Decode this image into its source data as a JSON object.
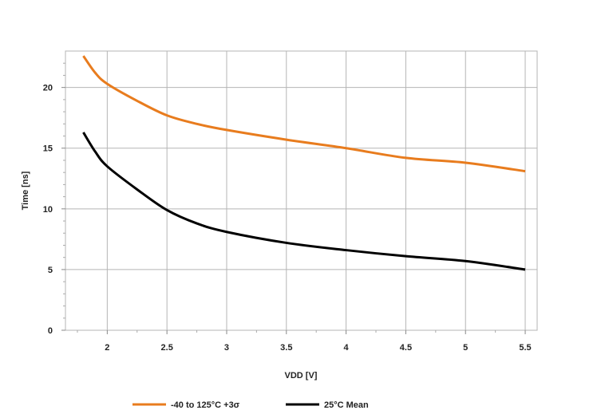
{
  "chart_data": {
    "type": "line",
    "title": "",
    "xlabel": "VDD [V]",
    "ylabel": "Time [ns]",
    "xlim": [
      1.65,
      5.6
    ],
    "ylim": [
      0,
      23
    ],
    "grid": true,
    "legend_position": "bottom",
    "x_ticks": [
      2,
      2.5,
      3,
      3.5,
      4,
      4.5,
      5,
      5.5
    ],
    "x_tick_labels": [
      "2",
      "2.5",
      "3",
      "3.5",
      "4",
      "4.5",
      "5",
      "5.5"
    ],
    "y_ticks": [
      0,
      5,
      10,
      15,
      20
    ],
    "y_tick_labels": [
      "0",
      "5",
      "10",
      "15",
      "20"
    ],
    "series": [
      {
        "name": "-40 to 125°C +3σ",
        "color": "#e87c1e",
        "x": [
          1.8,
          1.9,
          2.0,
          2.25,
          2.5,
          2.75,
          3.0,
          3.5,
          4.0,
          4.5,
          5.0,
          5.5
        ],
        "y": [
          22.6,
          21.2,
          20.3,
          18.9,
          17.7,
          17.0,
          16.5,
          15.7,
          15.0,
          14.2,
          13.8,
          13.1
        ]
      },
      {
        "name": "25°C Mean",
        "color": "#000000",
        "x": [
          1.8,
          1.9,
          2.0,
          2.25,
          2.5,
          2.75,
          3.0,
          3.5,
          4.0,
          4.5,
          5.0,
          5.5
        ],
        "y": [
          16.3,
          14.7,
          13.5,
          11.6,
          9.9,
          8.8,
          8.1,
          7.2,
          6.6,
          6.1,
          5.7,
          5.0
        ]
      }
    ]
  }
}
